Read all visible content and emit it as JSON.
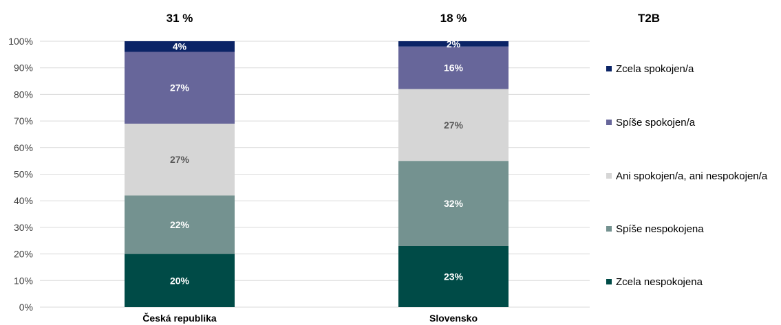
{
  "chart_data": {
    "type": "bar",
    "stacked": true,
    "percent_stacked": true,
    "categories": [
      "Česká republika",
      "Slovensko"
    ],
    "series": [
      {
        "name": "Zcela nespokojena",
        "values": [
          20,
          23
        ],
        "labels": [
          "20%",
          "23%"
        ],
        "color": "#004b47",
        "label_color": "#ffffff"
      },
      {
        "name": "Spíše nespokojena",
        "values": [
          22,
          32
        ],
        "labels": [
          "22%",
          "32%"
        ],
        "color": "#749290",
        "label_color": "#ffffff"
      },
      {
        "name": "Ani spokojen/a, ani nespokojen/a",
        "values": [
          27,
          27
        ],
        "labels": [
          "27%",
          "27%"
        ],
        "color": "#d6d6d6",
        "label_color": "#595959"
      },
      {
        "name": "Spíše spokojen/a",
        "values": [
          27,
          16
        ],
        "labels": [
          "27%",
          "16%"
        ],
        "color": "#67669a",
        "label_color": "#ffffff"
      },
      {
        "name": "Zcela spokojen/a",
        "values": [
          4,
          2
        ],
        "labels": [
          "4%",
          "2%"
        ],
        "color": "#0b2466",
        "label_color": "#ffffff"
      }
    ],
    "top_labels": [
      "31 %",
      "18 %"
    ],
    "top_right_label": "T2B",
    "yticks": [
      "0%",
      "10%",
      "20%",
      "30%",
      "40%",
      "50%",
      "60%",
      "70%",
      "80%",
      "90%",
      "100%"
    ],
    "ylim": [
      0,
      100
    ],
    "grid": true,
    "legend_position": "right"
  }
}
